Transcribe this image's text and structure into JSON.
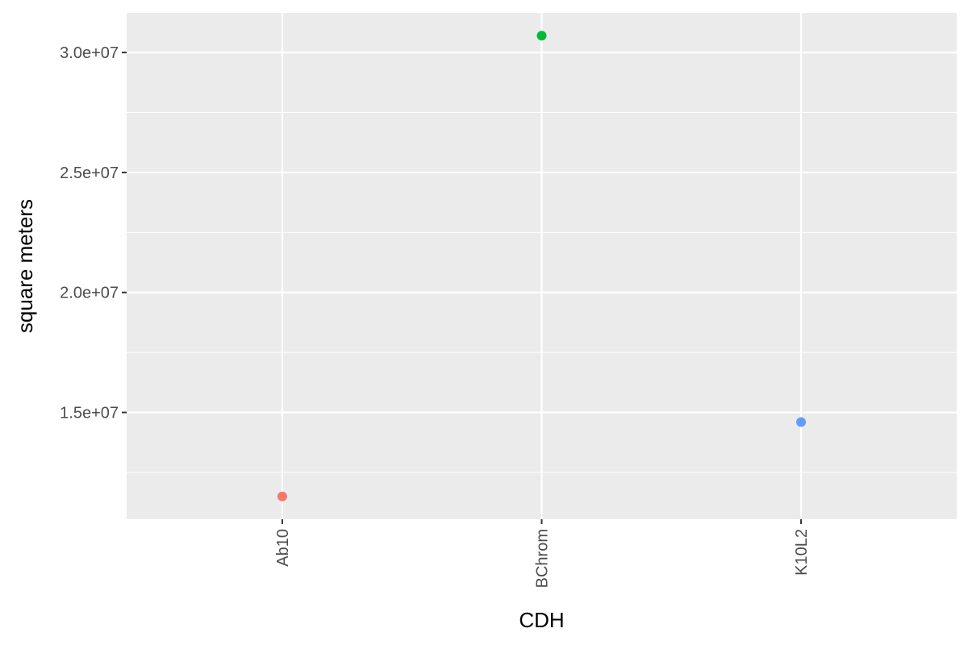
{
  "chart_data": {
    "type": "scatter",
    "title": "",
    "xlabel": "CDH",
    "ylabel": "square meters",
    "categories": [
      "Ab10",
      "BChrom",
      "K10L2"
    ],
    "values": [
      11500000,
      30700000,
      14600000
    ],
    "point_colors": [
      "#F8766D",
      "#00BA38",
      "#619CFF"
    ],
    "y_ticks": [
      15000000,
      20000000,
      25000000,
      30000000
    ],
    "y_tick_labels": [
      "1.5e+07",
      "2.0e+07",
      "2.5e+07",
      "3.0e+07"
    ],
    "ylim": [
      10550000,
      31650000
    ],
    "grid": true,
    "panel_background": "#EBEBEB",
    "legend": "none"
  }
}
